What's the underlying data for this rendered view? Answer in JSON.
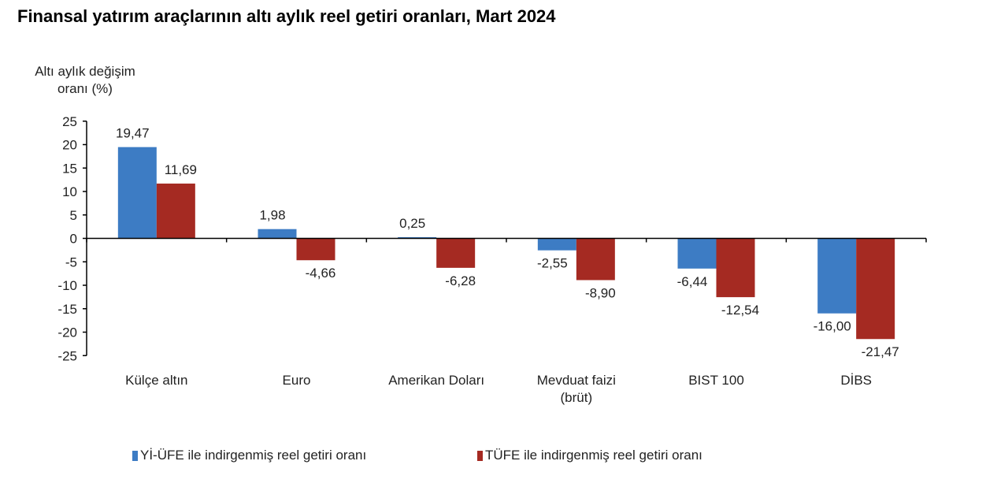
{
  "chart_data": {
    "type": "bar",
    "title": "Finansal yatırım araçlarının altı aylık reel getiri oranları, Mart 2024",
    "ylabel": "Altı aylık değişim oranı (%)",
    "xlabel": "",
    "ylim": [
      -25,
      25
    ],
    "yticks": [
      25,
      20,
      15,
      10,
      5,
      0,
      -5,
      -10,
      -15,
      -20,
      -25
    ],
    "grid": false,
    "legend": "bottom",
    "categories": [
      "Külçe altın",
      "Euro",
      "Amerikan Doları",
      "Mevduat faizi (brüt)",
      "BIST 100",
      "DİBS"
    ],
    "category_lines": [
      [
        "Külçe altın"
      ],
      [
        "Euro"
      ],
      [
        "Amerikan Doları"
      ],
      [
        "Mevduat faizi",
        "(brüt)"
      ],
      [
        "BIST 100"
      ],
      [
        "DİBS"
      ]
    ],
    "series": [
      {
        "name": "Yİ-ÜFE ile indirgenmiş reel getiri oranı",
        "color": "#3d7cc4",
        "values": [
          19.47,
          1.98,
          0.25,
          -2.55,
          -6.44,
          -16.0
        ],
        "labels": [
          "19,47",
          "1,98",
          "0,25",
          "-2,55",
          "-6,44",
          "-16,00"
        ]
      },
      {
        "name": "TÜFE ile indirgenmiş reel getiri oranı",
        "color": "#a52a22",
        "values": [
          11.69,
          -4.66,
          -6.28,
          -8.9,
          -12.54,
          -21.47
        ],
        "labels": [
          "11,69",
          "-4,66",
          "-6,28",
          "-8,90",
          "-12,54",
          "-21,47"
        ]
      }
    ]
  }
}
